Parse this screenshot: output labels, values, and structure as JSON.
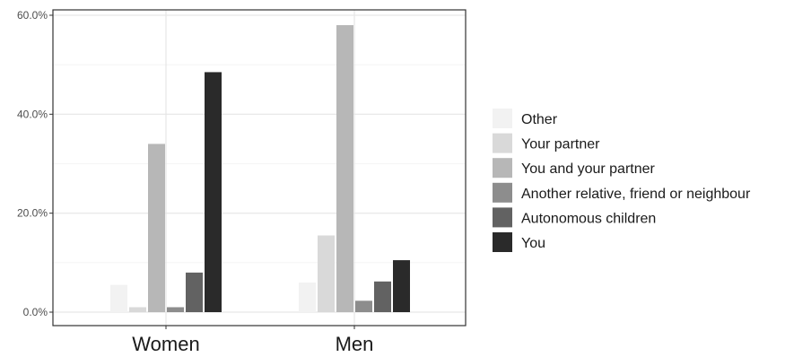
{
  "chart_data": {
    "type": "bar",
    "title": "",
    "xlabel": "",
    "ylabel": "",
    "categories": [
      "Women",
      "Men"
    ],
    "ylim": [
      0,
      60
    ],
    "yticks": [
      0,
      20,
      40,
      60
    ],
    "ytick_labels": [
      "0.0%",
      "20.0%",
      "40.0%",
      "60.0%"
    ],
    "grid": true,
    "legend_position": "right",
    "series": [
      {
        "name": "Other",
        "color": "#f2f2f2",
        "values": [
          5.5,
          6.0
        ]
      },
      {
        "name": "Your partner",
        "color": "#d9d9d9",
        "values": [
          1.0,
          15.5
        ]
      },
      {
        "name": "You and your partner",
        "color": "#b7b7b7",
        "values": [
          34.0,
          58.0
        ]
      },
      {
        "name": "Another relative, friend or neighbour",
        "color": "#8d8d8d",
        "values": [
          1.0,
          2.3
        ]
      },
      {
        "name": "Autonomous children",
        "color": "#626262",
        "values": [
          8.0,
          6.2
        ]
      },
      {
        "name": "You",
        "color": "#2a2a2a",
        "values": [
          48.5,
          10.5
        ]
      }
    ]
  }
}
